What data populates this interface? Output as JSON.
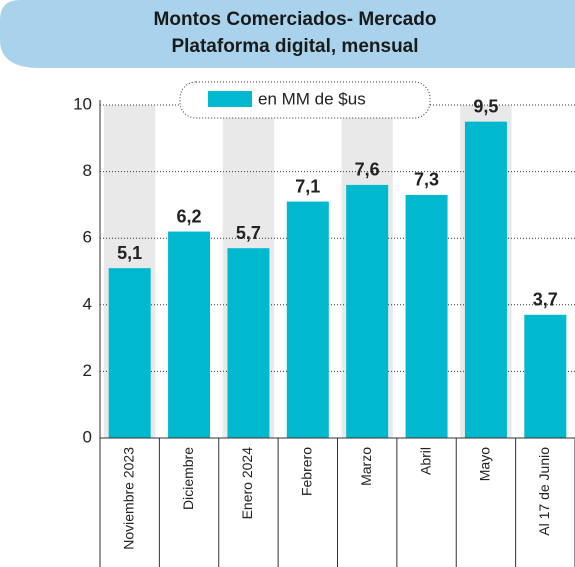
{
  "chart_data": {
    "type": "bar",
    "title": "Montos Comerciados- Mercado",
    "subtitle": "Plataforma digital, mensual",
    "legend": "en MM de $us",
    "color": "#00b9cf",
    "categories": [
      "Noviembre 2023",
      "Diciembre",
      "Enero 2024",
      "Febrero",
      "Marzo",
      "Abril",
      "Mayo",
      "Al 17 de Junio"
    ],
    "values": [
      5.1,
      6.2,
      5.7,
      7.1,
      7.6,
      7.3,
      9.5,
      3.7
    ],
    "value_labels": [
      "5,1",
      "6,2",
      "5,7",
      "7,1",
      "7,6",
      "7,3",
      "9,5",
      "3,7"
    ],
    "ylim": [
      0,
      10
    ],
    "yticks": [
      0,
      2,
      4,
      6,
      8,
      10
    ],
    "grid": true
  }
}
